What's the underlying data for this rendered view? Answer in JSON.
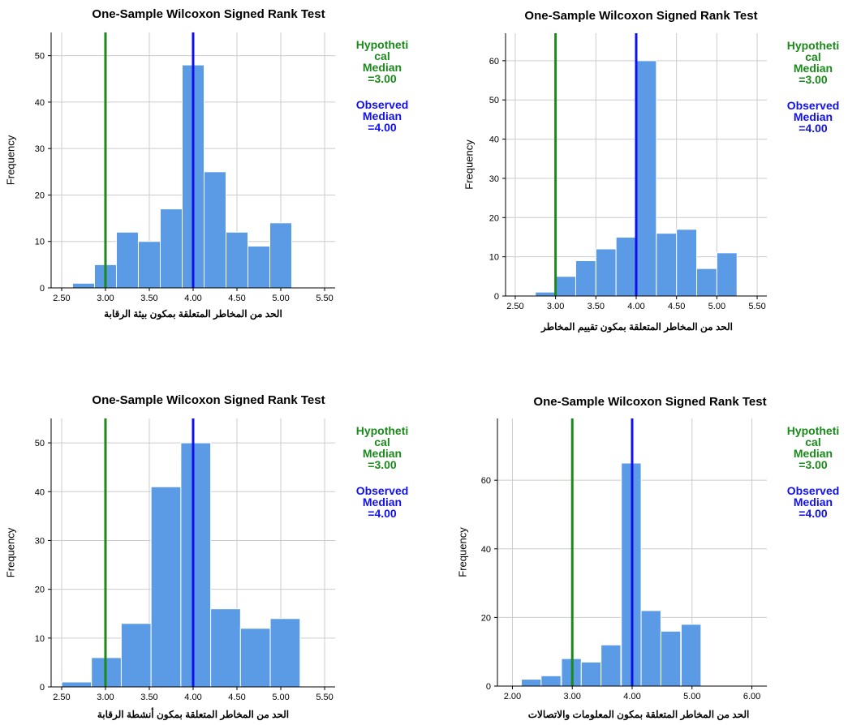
{
  "chart_data": [
    {
      "type": "bar",
      "title": "One-Sample Wilcoxon Signed Rank Test",
      "xlabel": "الحد من المخاطر المتعلقة بمكون بيئة الرقابة",
      "ylabel": "Frequency",
      "xlim": [
        2.38,
        5.62
      ],
      "ylim": [
        0,
        55
      ],
      "xticks": [
        2.5,
        3.0,
        3.5,
        4.0,
        4.5,
        5.0,
        5.5
      ],
      "xtick_labels": [
        "2.50",
        "3.00",
        "3.50",
        "4.00",
        "4.50",
        "5.00",
        "5.50"
      ],
      "yticks": [
        0,
        10,
        20,
        30,
        40,
        50
      ],
      "bin_width": 0.25,
      "bins": [
        {
          "x0": 2.625,
          "value": 1
        },
        {
          "x0": 2.875,
          "value": 5
        },
        {
          "x0": 3.125,
          "value": 12
        },
        {
          "x0": 3.375,
          "value": 10
        },
        {
          "x0": 3.625,
          "value": 17
        },
        {
          "x0": 3.875,
          "value": 48
        },
        {
          "x0": 4.125,
          "value": 25
        },
        {
          "x0": 4.375,
          "value": 12
        },
        {
          "x0": 4.625,
          "value": 9
        },
        {
          "x0": 4.875,
          "value": 14
        }
      ],
      "hypothetical_median": 3.0,
      "observed_median": 4.0,
      "legend_hyp": [
        "Hypotheti",
        "cal",
        "Median",
        "=3.00"
      ],
      "legend_obs": [
        "Observed",
        "Median",
        "=4.00"
      ],
      "grid": true
    },
    {
      "type": "bar",
      "title": "One-Sample Wilcoxon Signed Rank Test",
      "xlabel": "الحد من المخاطر المتعلقة بمكون تقييم المخاطر",
      "ylabel": "Frequency",
      "xlim": [
        2.38,
        5.62
      ],
      "ylim": [
        0,
        67
      ],
      "xticks": [
        2.5,
        3.0,
        3.5,
        4.0,
        4.5,
        5.0,
        5.5
      ],
      "xtick_labels": [
        "2.50",
        "3.00",
        "3.50",
        "4.00",
        "4.50",
        "5.00",
        "5.50"
      ],
      "yticks": [
        0,
        10,
        20,
        30,
        40,
        50,
        60
      ],
      "bin_width": 0.25,
      "bins": [
        {
          "x0": 2.75,
          "value": 1
        },
        {
          "x0": 3.0,
          "value": 5
        },
        {
          "x0": 3.25,
          "value": 9
        },
        {
          "x0": 3.5,
          "value": 12
        },
        {
          "x0": 3.75,
          "value": 15
        },
        {
          "x0": 4.0,
          "value": 60
        },
        {
          "x0": 4.25,
          "value": 16
        },
        {
          "x0": 4.5,
          "value": 17
        },
        {
          "x0": 4.75,
          "value": 7
        },
        {
          "x0": 5.0,
          "value": 11
        }
      ],
      "hypothetical_median": 3.0,
      "observed_median": 4.0,
      "legend_hyp": [
        "Hypotheti",
        "cal",
        "Median",
        "=3.00"
      ],
      "legend_obs": [
        "Observed",
        "Median",
        "=4.00"
      ],
      "grid": true
    },
    {
      "type": "bar",
      "title": "One-Sample Wilcoxon Signed Rank Test",
      "xlabel": "الحد من المخاطر المتعلقة بمكون أنشطة الرقابة",
      "ylabel": "Frequency",
      "xlim": [
        2.38,
        5.62
      ],
      "ylim": [
        0,
        55
      ],
      "xticks": [
        2.5,
        3.0,
        3.5,
        4.0,
        4.5,
        5.0,
        5.5
      ],
      "xtick_labels": [
        "2.50",
        "3.00",
        "3.50",
        "4.00",
        "4.50",
        "5.00",
        "5.50"
      ],
      "yticks": [
        0,
        10,
        20,
        30,
        40,
        50
      ],
      "bin_width": 0.34,
      "bins": [
        {
          "x0": 2.5,
          "value": 1
        },
        {
          "x0": 2.84,
          "value": 6
        },
        {
          "x0": 3.18,
          "value": 13
        },
        {
          "x0": 3.52,
          "value": 41
        },
        {
          "x0": 3.86,
          "value": 50
        },
        {
          "x0": 4.2,
          "value": 16
        },
        {
          "x0": 4.54,
          "value": 12
        },
        {
          "x0": 4.88,
          "value": 14
        }
      ],
      "hypothetical_median": 3.0,
      "observed_median": 4.0,
      "legend_hyp": [
        "Hypotheti",
        "cal",
        "Median",
        "=3.00"
      ],
      "legend_obs": [
        "Observed",
        "Median",
        "=4.00"
      ],
      "grid": true
    },
    {
      "type": "bar",
      "title": "One-Sample Wilcoxon Signed Rank Test",
      "xlabel": "الحد من المخاطر المتعلقة بمكون المعلومات والاتصالات",
      "ylabel": "Frequency",
      "xlim": [
        1.75,
        6.25
      ],
      "ylim": [
        0,
        78
      ],
      "xticks": [
        2.0,
        3.0,
        4.0,
        5.0,
        6.0
      ],
      "xtick_labels": [
        "2.00",
        "3.00",
        "4.00",
        "5.00",
        "6.00"
      ],
      "yticks": [
        0,
        20,
        40,
        60
      ],
      "bin_width": 0.33,
      "bins": [
        {
          "x0": 2.15,
          "value": 2
        },
        {
          "x0": 2.48,
          "value": 3
        },
        {
          "x0": 2.82,
          "value": 8
        },
        {
          "x0": 3.15,
          "value": 7
        },
        {
          "x0": 3.48,
          "value": 12
        },
        {
          "x0": 3.82,
          "value": 65
        },
        {
          "x0": 4.15,
          "value": 22
        },
        {
          "x0": 4.48,
          "value": 16
        },
        {
          "x0": 4.82,
          "value": 18
        }
      ],
      "hypothetical_median": 3.0,
      "observed_median": 4.0,
      "legend_hyp": [
        "Hypotheti",
        "cal",
        "Median",
        "=3.00"
      ],
      "legend_obs": [
        "Observed",
        "Median",
        "=4.00"
      ],
      "grid": true
    }
  ],
  "colors": {
    "bar": "#5b9be6",
    "bar_edge": "#ffffff",
    "hypothetical": "#1a8a1a",
    "observed": "#1010ee",
    "grid": "#cccccc",
    "axis": "#000000"
  }
}
